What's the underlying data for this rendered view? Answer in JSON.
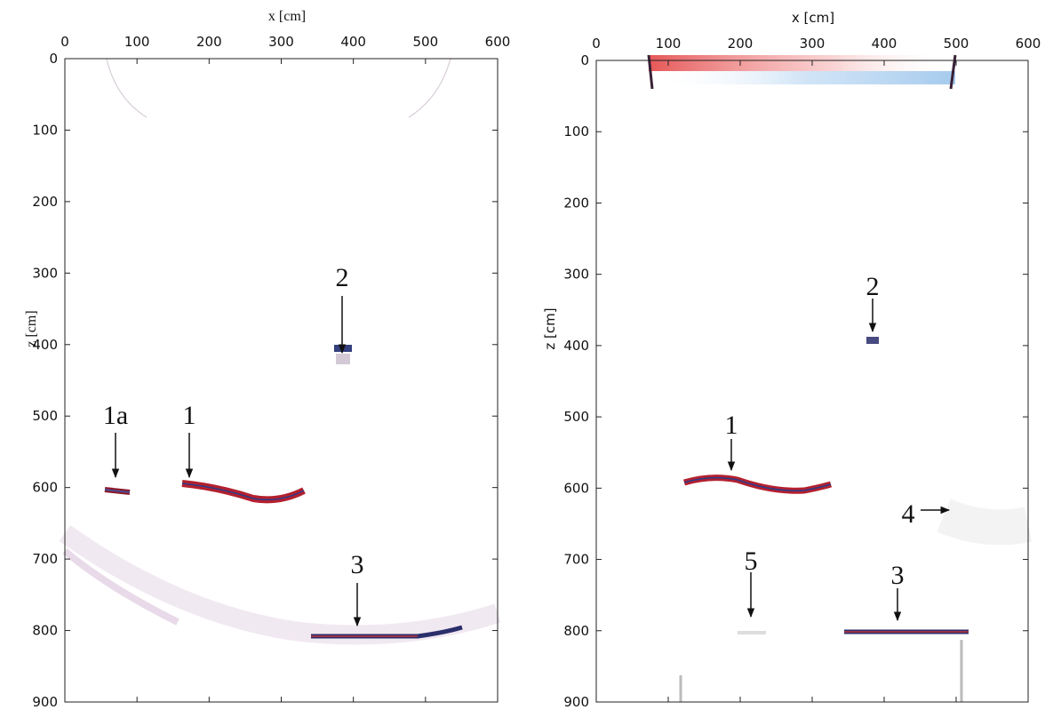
{
  "chart_data": [
    {
      "type": "image",
      "x_label": "x [cm]",
      "y_label": "z [cm]",
      "xlim": [
        0,
        600
      ],
      "xticks": [
        0,
        100,
        200,
        300,
        400,
        500,
        600
      ],
      "ylim": [
        900,
        0
      ],
      "yticks": [
        0,
        100,
        200,
        300,
        400,
        500,
        600,
        700,
        800,
        900
      ],
      "annotations": [
        "1a",
        "1",
        "2",
        "3"
      ]
    },
    {
      "type": "image",
      "x_label": "x [cm]",
      "y_label": "z [cm]",
      "xlim": [
        0,
        600
      ],
      "xticks": [
        0,
        100,
        200,
        300,
        400,
        500,
        600
      ],
      "ylim": [
        900,
        0
      ],
      "yticks": [
        0,
        100,
        200,
        300,
        400,
        500,
        600,
        700,
        800,
        900
      ],
      "annotations": [
        "2",
        "1",
        "4",
        "5",
        "3"
      ]
    }
  ]
}
